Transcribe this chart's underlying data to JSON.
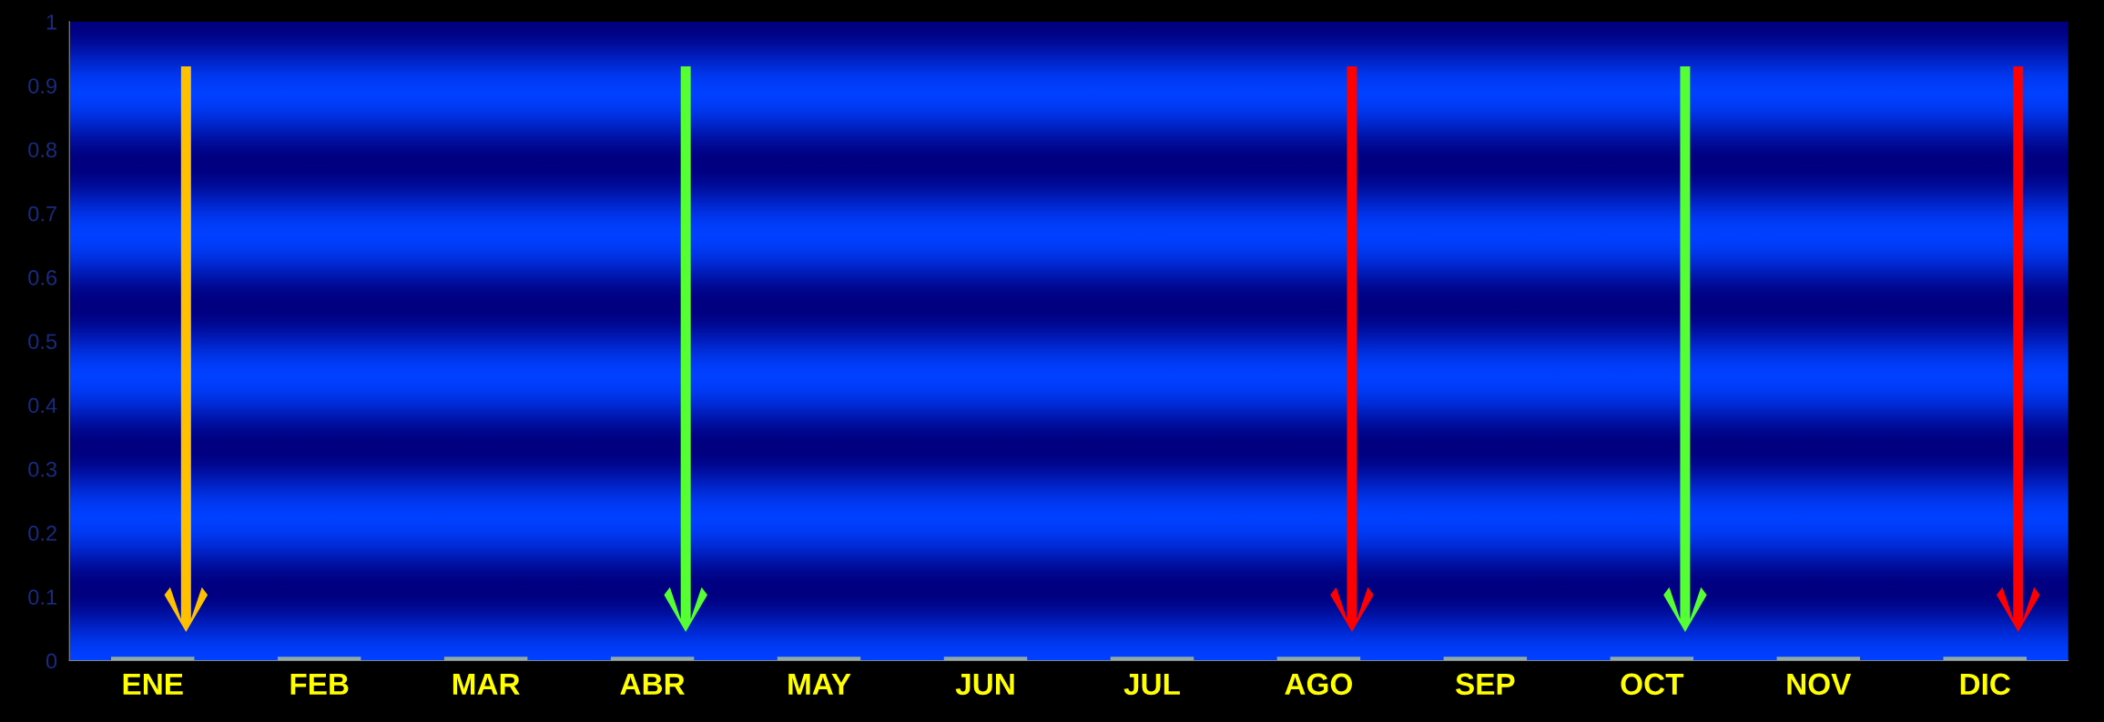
{
  "chart_data": {
    "type": "bar",
    "categories": [
      "ENE",
      "FEB",
      "MAR",
      "ABR",
      "MAY",
      "JUN",
      "JUL",
      "AGO",
      "SEP",
      "OCT",
      "NOV",
      "DIC"
    ],
    "values": [
      0,
      0,
      0,
      0,
      0,
      0,
      0,
      0,
      0,
      0,
      0,
      0
    ],
    "color": "#8fa8a8",
    "ylim": [
      0,
      1
    ],
    "yticks": [
      0,
      0.1,
      0.2,
      0.3,
      0.4,
      0.5,
      0.6,
      0.7,
      0.8,
      0.9,
      1
    ],
    "grid": false
  }
}
